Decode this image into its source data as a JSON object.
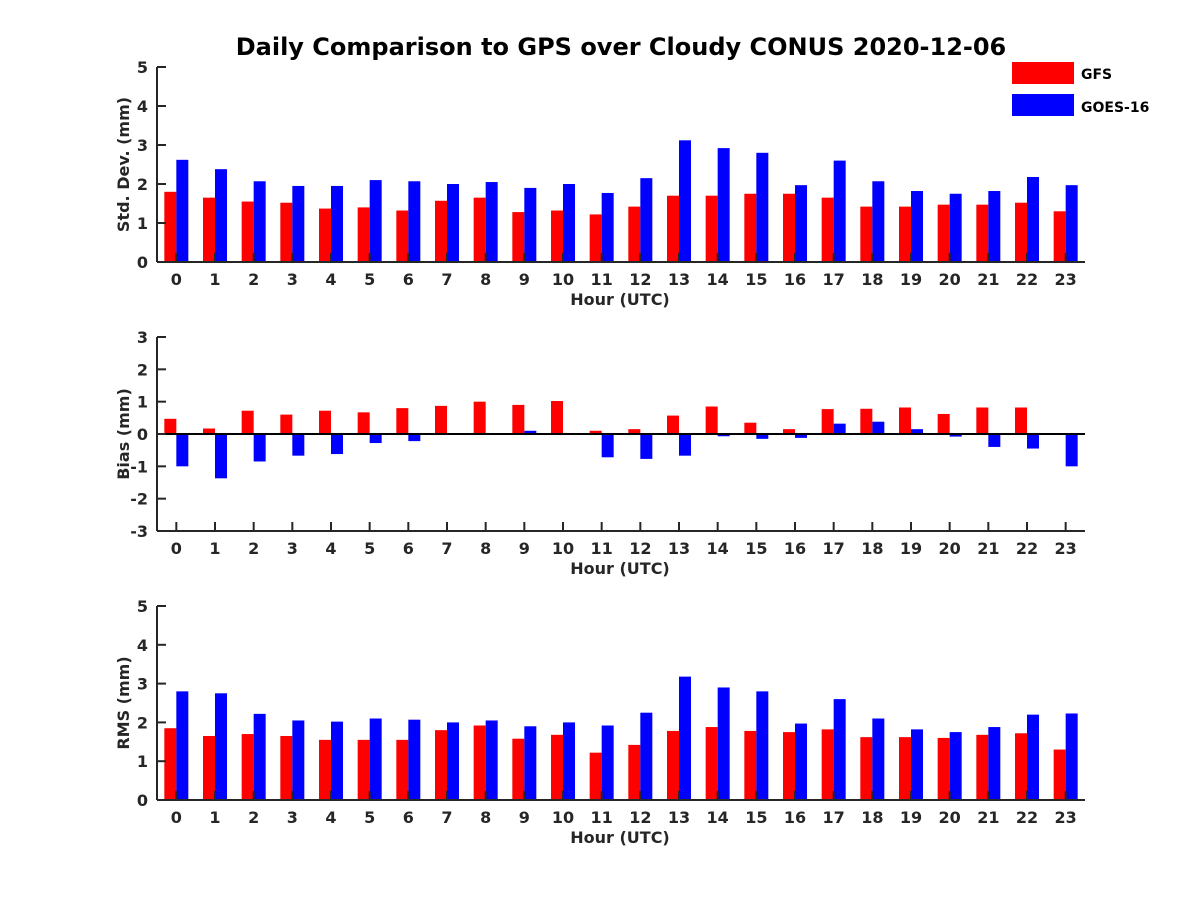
{
  "chart_data": [
    {
      "type": "bar",
      "title": "Daily Comparison to GPS over Cloudy CONUS 2020-12-06",
      "xlabel": "Hour (UTC)",
      "ylabel": "Std. Dev. (mm)",
      "ylim": [
        0,
        5
      ],
      "yticks": [
        0,
        1,
        2,
        3,
        4,
        5
      ],
      "categories": [
        "0",
        "1",
        "2",
        "3",
        "4",
        "5",
        "6",
        "7",
        "8",
        "9",
        "10",
        "11",
        "12",
        "13",
        "14",
        "15",
        "16",
        "17",
        "18",
        "19",
        "20",
        "21",
        "22",
        "23"
      ],
      "series": [
        {
          "name": "GFS",
          "color": "#ff0000",
          "values": [
            1.8,
            1.65,
            1.55,
            1.52,
            1.37,
            1.4,
            1.32,
            1.57,
            1.65,
            1.28,
            1.32,
            1.22,
            1.42,
            1.7,
            1.7,
            1.75,
            1.75,
            1.65,
            1.42,
            1.42,
            1.47,
            1.47,
            1.52,
            1.3
          ]
        },
        {
          "name": "GOES-16",
          "color": "#0000ff",
          "values": [
            2.62,
            2.38,
            2.07,
            1.95,
            1.95,
            2.1,
            2.07,
            2.0,
            2.05,
            1.9,
            2.0,
            1.77,
            2.15,
            3.12,
            2.92,
            2.8,
            1.97,
            2.6,
            2.07,
            1.82,
            1.75,
            1.82,
            2.18,
            1.97
          ]
        }
      ]
    },
    {
      "type": "bar",
      "title": "",
      "xlabel": "Hour (UTC)",
      "ylabel": "Bias (mm)",
      "ylim": [
        -3,
        3
      ],
      "yticks": [
        -3,
        -2,
        -1,
        0,
        1,
        2,
        3
      ],
      "categories": [
        "0",
        "1",
        "2",
        "3",
        "4",
        "5",
        "6",
        "7",
        "8",
        "9",
        "10",
        "11",
        "12",
        "13",
        "14",
        "15",
        "16",
        "17",
        "18",
        "19",
        "20",
        "21",
        "22",
        "23"
      ],
      "series": [
        {
          "name": "GFS",
          "color": "#ff0000",
          "values": [
            0.47,
            0.17,
            0.72,
            0.6,
            0.72,
            0.67,
            0.8,
            0.87,
            1.0,
            0.9,
            1.02,
            0.1,
            0.15,
            0.57,
            0.85,
            0.35,
            0.15,
            0.77,
            0.78,
            0.82,
            0.62,
            0.82,
            0.82,
            0.03
          ]
        },
        {
          "name": "GOES-16",
          "color": "#0000ff",
          "values": [
            -1.0,
            -1.37,
            -0.85,
            -0.67,
            -0.62,
            -0.28,
            -0.22,
            0.0,
            0.0,
            0.1,
            0.0,
            -0.72,
            -0.77,
            -0.67,
            -0.07,
            -0.15,
            -0.12,
            0.32,
            0.38,
            0.15,
            -0.08,
            -0.4,
            -0.45,
            -1.0
          ]
        }
      ]
    },
    {
      "type": "bar",
      "title": "",
      "xlabel": "Hour (UTC)",
      "ylabel": "RMS (mm)",
      "ylim": [
        0,
        5
      ],
      "yticks": [
        0,
        1,
        2,
        3,
        4,
        5
      ],
      "categories": [
        "0",
        "1",
        "2",
        "3",
        "4",
        "5",
        "6",
        "7",
        "8",
        "9",
        "10",
        "11",
        "12",
        "13",
        "14",
        "15",
        "16",
        "17",
        "18",
        "19",
        "20",
        "21",
        "22",
        "23"
      ],
      "series": [
        {
          "name": "GFS",
          "color": "#ff0000",
          "values": [
            1.85,
            1.65,
            1.7,
            1.65,
            1.55,
            1.55,
            1.55,
            1.8,
            1.92,
            1.58,
            1.68,
            1.22,
            1.42,
            1.78,
            1.88,
            1.78,
            1.75,
            1.82,
            1.62,
            1.62,
            1.6,
            1.68,
            1.72,
            1.3
          ]
        },
        {
          "name": "GOES-16",
          "color": "#0000ff",
          "values": [
            2.8,
            2.75,
            2.22,
            2.05,
            2.02,
            2.1,
            2.07,
            2.0,
            2.05,
            1.9,
            2.0,
            1.92,
            2.25,
            3.18,
            2.9,
            2.8,
            1.97,
            2.6,
            2.1,
            1.82,
            1.75,
            1.88,
            2.2,
            2.23
          ]
        }
      ]
    }
  ],
  "legend": {
    "placement": "top-right",
    "entries": [
      {
        "label": "GFS",
        "color": "#ff0000"
      },
      {
        "label": "GOES-16",
        "color": "#0000ff"
      }
    ]
  }
}
